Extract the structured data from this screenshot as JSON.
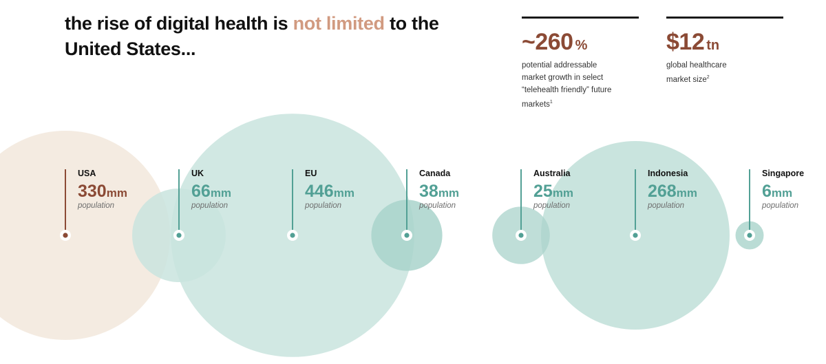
{
  "headline": {
    "part1": "the rise of digital health is ",
    "highlight": "not limited",
    "part2": " to the United States..."
  },
  "stats": [
    {
      "value": "~260",
      "unit": "%",
      "line1": "potential addressable",
      "line2": "market growth in select",
      "line3": "“telehealth friendly” future",
      "line4": "markets",
      "footnote": "1"
    },
    {
      "value": "$12",
      "unit": "tn",
      "line1": "global healthcare",
      "line2": "market size",
      "footnote": "2"
    }
  ],
  "colors": {
    "usa_circle": "#f4ebe1",
    "teal_circle": "#c9e4de",
    "teal_halo": "#a9d3cb",
    "teal": "#52a095",
    "brown": "#8b4a35",
    "accent": "#d19a80"
  },
  "chart_data": {
    "type": "bubble",
    "title": "the rise of digital health is not limited to the United States...",
    "unit": "mm",
    "measure_label": "population",
    "countries": [
      {
        "name": "USA",
        "value": 330,
        "unit": "mm",
        "label": "population",
        "color": "brown"
      },
      {
        "name": "UK",
        "value": 66,
        "unit": "mm",
        "label": "population",
        "color": "teal"
      },
      {
        "name": "EU",
        "value": 446,
        "unit": "mm",
        "label": "population",
        "color": "teal"
      },
      {
        "name": "Canada",
        "value": 38,
        "unit": "mm",
        "label": "population",
        "color": "teal"
      },
      {
        "name": "Australia",
        "value": 25,
        "unit": "mm",
        "label": "population",
        "color": "teal"
      },
      {
        "name": "Indonesia",
        "value": 268,
        "unit": "mm",
        "label": "population",
        "color": "teal"
      },
      {
        "name": "Singapore",
        "value": 6,
        "unit": "mm",
        "label": "population",
        "color": "teal"
      }
    ]
  }
}
